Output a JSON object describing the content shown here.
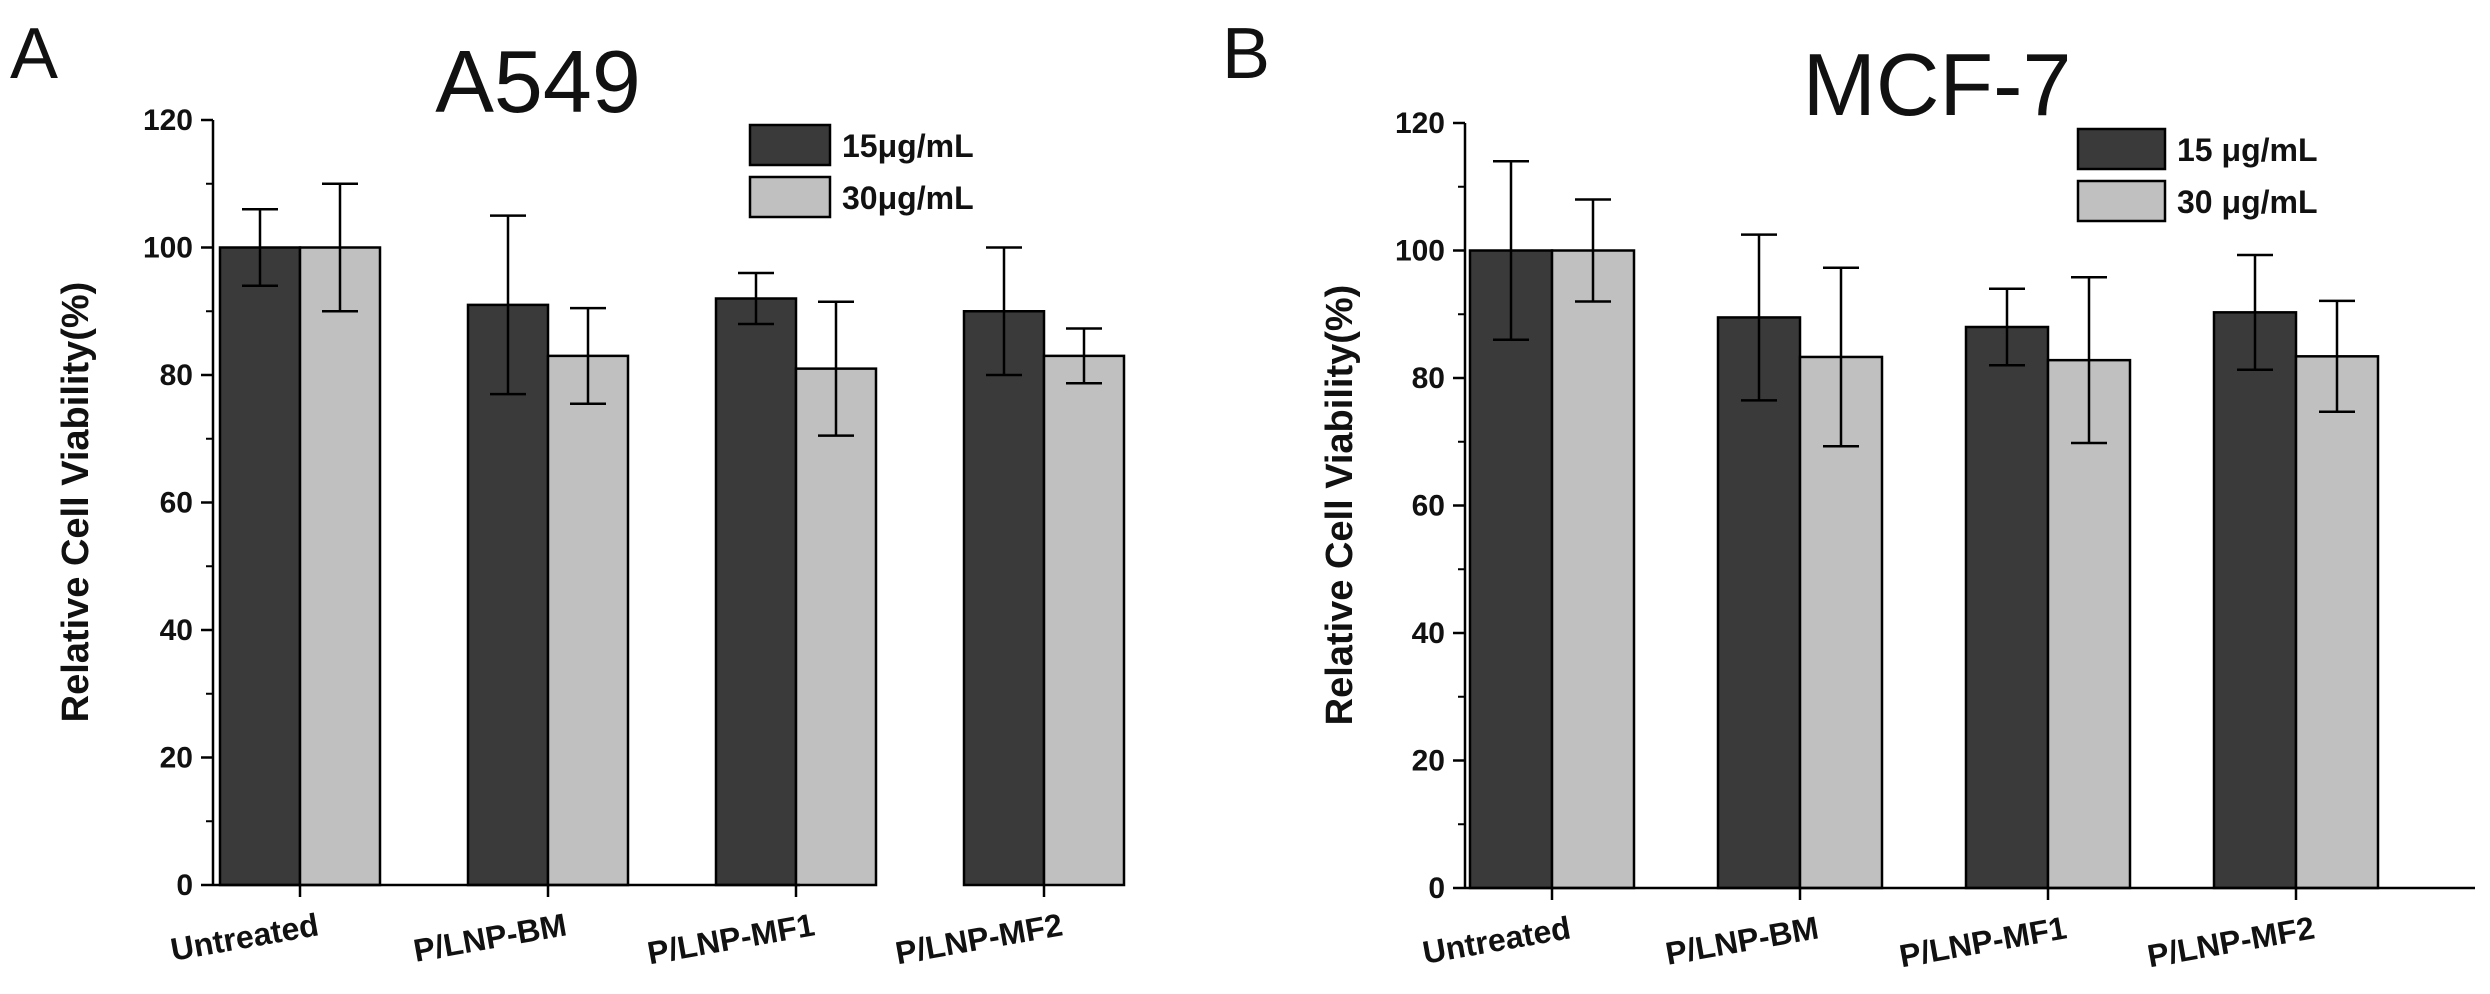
{
  "chart_data": [
    {
      "type": "bar",
      "panel": "A",
      "title": "A549",
      "xlabel": "",
      "ylabel": "Relative Cell Viability(%)",
      "ylim": [
        0,
        120
      ],
      "yticks": [
        "0",
        "20",
        "40",
        "60",
        "80",
        "100",
        "120"
      ],
      "categories": [
        "Untreated",
        "P/LNP-BM",
        "P/LNP-MF1",
        "P/LNP-MF2"
      ],
      "legend_position": "top-right",
      "series": [
        {
          "name": "15μg/mL",
          "color": "#3a3a3a",
          "values": [
            100,
            91,
            92,
            90
          ],
          "errors": [
            6,
            14,
            4,
            10
          ]
        },
        {
          "name": "30μg/mL",
          "color": "#c0c0c0",
          "values": [
            100,
            83,
            81,
            83
          ],
          "errors": [
            10,
            7.5,
            10.5,
            4.3
          ]
        }
      ]
    },
    {
      "type": "bar",
      "panel": "B",
      "title": "MCF-7",
      "xlabel": "",
      "ylabel": "Relative Cell Viability(%)",
      "ylim": [
        0,
        120
      ],
      "yticks": [
        "0",
        "20",
        "40",
        "60",
        "80",
        "100",
        "120"
      ],
      "categories": [
        "Untreated",
        "P/LNP-BM",
        "P/LNP-MF1",
        "P/LNP-MF2"
      ],
      "legend_position": "top-right",
      "series": [
        {
          "name": "15 μg/mL",
          "color": "#3a3a3a",
          "values": [
            100,
            89.5,
            88,
            90.3
          ],
          "errors": [
            14,
            13,
            6,
            9
          ]
        },
        {
          "name": "30 μg/mL",
          "color": "#c0c0c0",
          "values": [
            100,
            83.3,
            82.8,
            83.4
          ],
          "errors": [
            8,
            14,
            13,
            8.7
          ]
        }
      ]
    }
  ]
}
